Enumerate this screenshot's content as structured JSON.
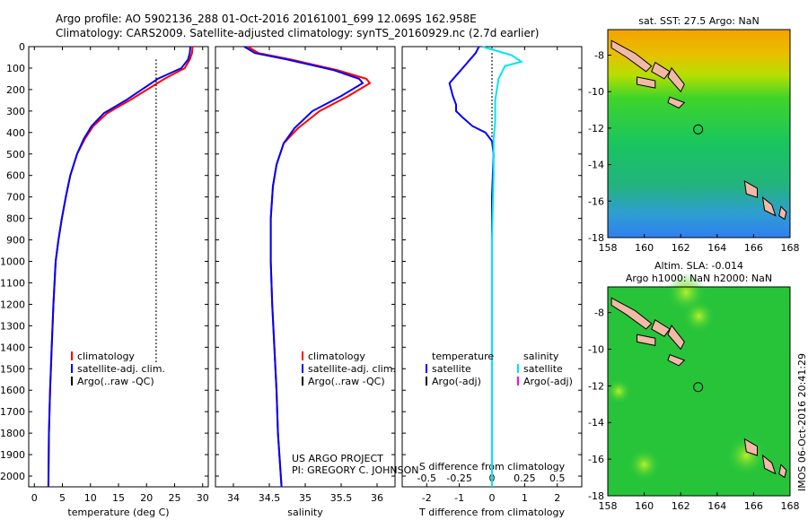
{
  "title": {
    "line1": "Argo profile: AO 5902136_288 01-Oct-2016 20161001_699 12.069S 162.958E",
    "line2": "Climatology: CARS2009. Satellite-adjusted climatology: synTS_20160929.nc (2.7d earlier)"
  },
  "project_note": {
    "line1": "US ARGO PROJECT",
    "line2": "PI: GREGORY C. JOHNSON"
  },
  "watermark": "IMOS 06-Oct-2016 20:41:29",
  "colors": {
    "climatology": "#ff0000",
    "satellite": "#0000ff",
    "argo": "#000000",
    "sat_salinity": "#00e5ee",
    "argo_salinity": "#ff00ff"
  },
  "chart_data": [
    {
      "type": "line",
      "id": "temperature",
      "xlabel": "temperature (deg C)",
      "xlim": [
        -1,
        31
      ],
      "ylim": [
        2050,
        0
      ],
      "xticks": [
        0,
        5,
        10,
        15,
        20,
        25,
        30
      ],
      "yticks": [
        0,
        100,
        200,
        300,
        400,
        500,
        600,
        700,
        800,
        900,
        1000,
        1100,
        1200,
        1300,
        1400,
        1500,
        1600,
        1700,
        1800,
        1900,
        2000
      ],
      "series": [
        {
          "name": "climatology",
          "color": "#ff0000",
          "x": [
            28.2,
            28.1,
            27.7,
            26.8,
            23.2,
            17.0,
            13.0,
            10.5,
            9.0,
            7.6,
            6.4,
            5.6,
            4.9,
            4.3,
            3.8,
            3.4,
            3.1,
            2.8,
            2.6,
            2.5
          ],
          "y": [
            0,
            30,
            60,
            100,
            150,
            250,
            310,
            370,
            430,
            500,
            600,
            700,
            800,
            900,
            1000,
            1200,
            1400,
            1600,
            1800,
            2050
          ]
        },
        {
          "name": "satellite-adj. clim.",
          "color": "#0000ff",
          "x": [
            27.8,
            27.7,
            27.4,
            26.2,
            22.0,
            16.3,
            12.4,
            10.2,
            8.8,
            7.6,
            6.4,
            5.6,
            4.9,
            4.3,
            3.8,
            3.4,
            3.1,
            2.8,
            2.6,
            2.5
          ],
          "y": [
            0,
            30,
            60,
            100,
            150,
            250,
            310,
            370,
            430,
            500,
            600,
            700,
            800,
            900,
            1000,
            1200,
            1400,
            1600,
            1800,
            2050
          ]
        },
        {
          "name": "Argo(..raw -QC)",
          "color": "#000000",
          "dotted": true,
          "x": [
            21.7,
            21.7
          ],
          "y": [
            60,
            1480
          ]
        }
      ]
    },
    {
      "type": "line",
      "id": "salinity",
      "xlabel": "salinity",
      "xlim": [
        33.75,
        36.25
      ],
      "ylim": [
        2050,
        0
      ],
      "xticks": [
        34,
        34.5,
        35,
        35.5,
        36
      ],
      "series": [
        {
          "name": "climatology",
          "color": "#ff0000",
          "x": [
            34.2,
            34.35,
            34.8,
            35.45,
            35.85,
            35.9,
            35.6,
            35.2,
            34.9,
            34.7,
            34.6,
            34.55,
            34.52,
            34.52,
            34.54,
            34.57,
            34.6,
            34.62,
            34.64,
            34.66,
            34.67
          ],
          "y": [
            0,
            30,
            60,
            110,
            150,
            170,
            230,
            300,
            380,
            450,
            550,
            650,
            800,
            1000,
            1200,
            1400,
            1600,
            1800,
            1900,
            2000,
            2050
          ]
        },
        {
          "name": "satellite-adj. clim.",
          "color": "#0000ff",
          "x": [
            34.15,
            34.3,
            34.75,
            35.4,
            35.75,
            35.8,
            35.5,
            35.1,
            34.85,
            34.7,
            34.6,
            34.55,
            34.52,
            34.52,
            34.54,
            34.57,
            34.6,
            34.62,
            34.64,
            34.66,
            34.67
          ],
          "y": [
            0,
            30,
            60,
            110,
            150,
            170,
            230,
            300,
            380,
            450,
            550,
            650,
            800,
            1000,
            1200,
            1400,
            1600,
            1800,
            1900,
            2000,
            2050
          ]
        }
      ]
    },
    {
      "type": "line",
      "id": "difference",
      "xlabel": "T difference from climatology",
      "xlabel2": "S difference from climatology",
      "xlim": [
        -2.75,
        2.75
      ],
      "ylim": [
        2050,
        0
      ],
      "xticks": [
        -2,
        -1,
        0,
        1,
        2
      ],
      "s_ticks": [
        {
          "label": "-0.5",
          "x": -2
        },
        {
          "label": "-0.25",
          "x": -1
        },
        {
          "label": "0",
          "x": 0
        },
        {
          "label": "0.25",
          "x": 1
        },
        {
          "label": "0.5",
          "x": 2
        }
      ],
      "series": [
        {
          "name": "satellite",
          "group": "temperature",
          "color": "#0000ff",
          "x": [
            -0.4,
            -0.5,
            -0.9,
            -1.3,
            -1.2,
            -1.1,
            -1.1,
            -0.9,
            -0.6,
            -0.2,
            0,
            0.05,
            0,
            0,
            0
          ],
          "y": [
            0,
            30,
            100,
            170,
            230,
            270,
            300,
            330,
            370,
            400,
            440,
            500,
            700,
            1500,
            2050
          ]
        },
        {
          "name": "satellite",
          "group": "salinity",
          "color": "#00e5ee",
          "x": [
            -0.3,
            0.6,
            0.9,
            0.4,
            0.2,
            0.1,
            0.1,
            0.05,
            0.05,
            0,
            0,
            0
          ],
          "y": [
            0,
            40,
            70,
            90,
            150,
            250,
            350,
            430,
            600,
            900,
            1500,
            2050
          ]
        },
        {
          "name": "zero line",
          "group": "reference",
          "color": "#000000",
          "dotted": true,
          "x": [
            0,
            0
          ],
          "y": [
            30,
            430
          ]
        }
      ]
    }
  ],
  "legend_left": {
    "climatology": "climatology",
    "satellite": "satellite-adj. clim.",
    "argo": "Argo(..raw -QC)"
  },
  "legend_diff": {
    "temperature_header": "temperature",
    "salinity_header": "salinity",
    "t_satellite": "satellite",
    "t_argo": "Argo(-adj)",
    "s_satellite": "satellite",
    "s_argo": "Argo(-adj)"
  },
  "map_top": {
    "title": "sat. SST: 27.5 Argo: NaN",
    "xticks": [
      158,
      160,
      162,
      164,
      166,
      168
    ],
    "yticks": [
      -8,
      -10,
      -12,
      -14,
      -16,
      -18
    ],
    "xlim": [
      158,
      168
    ],
    "ylim": [
      -18,
      -6.6
    ],
    "float_position": [
      162.958,
      -12.069
    ]
  },
  "map_bottom": {
    "title_line1": "Altim. SLA: -0.014",
    "title_line2": "Argo h1000: NaN h2000: NaN",
    "xticks": [
      158,
      160,
      162,
      164,
      166,
      168
    ],
    "yticks": [
      -8,
      -10,
      -12,
      -14,
      -16,
      -18
    ],
    "xlim": [
      158,
      168
    ],
    "ylim": [
      -18,
      -6.6
    ],
    "float_position": [
      162.958,
      -12.069
    ]
  }
}
